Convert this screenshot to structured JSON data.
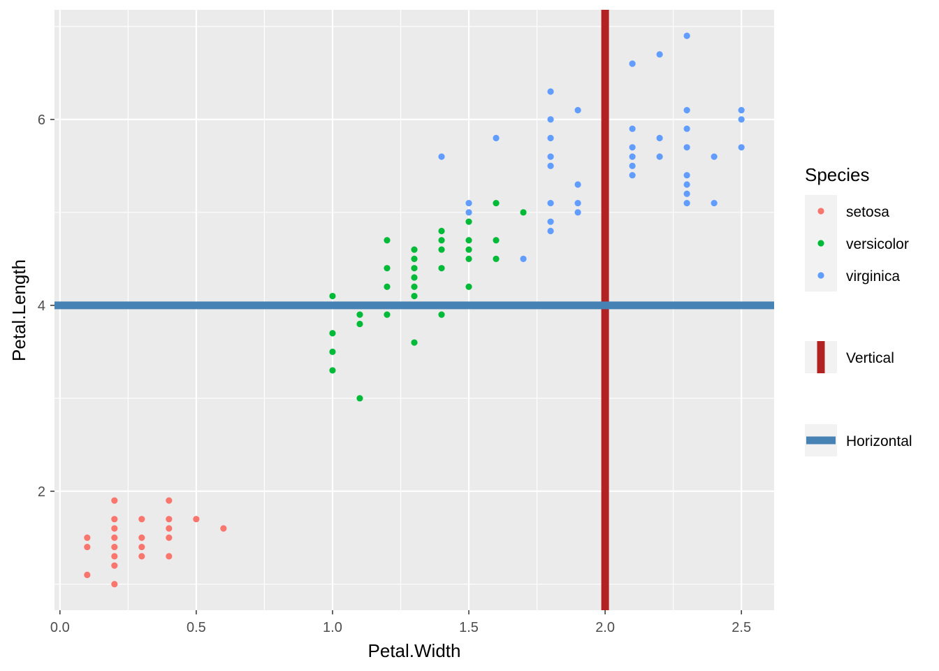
{
  "chart_data": {
    "type": "scatter",
    "xlabel": "Petal.Width",
    "ylabel": "Petal.Length",
    "xlim": [
      -0.02,
      2.62
    ],
    "ylim": [
      0.72,
      7.18
    ],
    "x_ticks": [
      0.0,
      0.5,
      1.0,
      1.5,
      2.0,
      2.5
    ],
    "x_tick_labels": [
      "0.0",
      "0.5",
      "1.0",
      "1.5",
      "2.0",
      "2.5"
    ],
    "y_ticks": [
      2,
      4,
      6
    ],
    "y_tick_labels": [
      "2",
      "4",
      "6"
    ],
    "x_minor_ticks": [
      0.25,
      0.75,
      1.25,
      1.75,
      2.25
    ],
    "y_minor_ticks": [
      1,
      3,
      5,
      7
    ],
    "grid": true,
    "panel_background": "#ebebeb",
    "legend_position": "right",
    "legend_title": "Species",
    "series": [
      {
        "name": "setosa",
        "color": "#F8766D",
        "points": [
          [
            0.1,
            1.1
          ],
          [
            0.1,
            1.4
          ],
          [
            0.1,
            1.5
          ],
          [
            0.2,
            1.0
          ],
          [
            0.2,
            1.2
          ],
          [
            0.2,
            1.3
          ],
          [
            0.2,
            1.4
          ],
          [
            0.2,
            1.5
          ],
          [
            0.2,
            1.6
          ],
          [
            0.2,
            1.7
          ],
          [
            0.2,
            1.9
          ],
          [
            0.3,
            1.3
          ],
          [
            0.3,
            1.4
          ],
          [
            0.3,
            1.5
          ],
          [
            0.3,
            1.7
          ],
          [
            0.4,
            1.3
          ],
          [
            0.4,
            1.5
          ],
          [
            0.4,
            1.6
          ],
          [
            0.4,
            1.7
          ],
          [
            0.4,
            1.9
          ],
          [
            0.5,
            1.7
          ],
          [
            0.6,
            1.6
          ]
        ]
      },
      {
        "name": "versicolor",
        "color": "#00BA38",
        "points": [
          [
            1.0,
            3.3
          ],
          [
            1.0,
            3.5
          ],
          [
            1.0,
            3.7
          ],
          [
            1.0,
            4.1
          ],
          [
            1.1,
            3.0
          ],
          [
            1.1,
            3.8
          ],
          [
            1.1,
            3.9
          ],
          [
            1.2,
            3.9
          ],
          [
            1.2,
            4.2
          ],
          [
            1.2,
            4.4
          ],
          [
            1.2,
            4.7
          ],
          [
            1.3,
            3.6
          ],
          [
            1.3,
            4.1
          ],
          [
            1.3,
            4.2
          ],
          [
            1.3,
            4.3
          ],
          [
            1.3,
            4.4
          ],
          [
            1.3,
            4.5
          ],
          [
            1.3,
            4.6
          ],
          [
            1.4,
            3.9
          ],
          [
            1.4,
            4.4
          ],
          [
            1.4,
            4.6
          ],
          [
            1.4,
            4.7
          ],
          [
            1.4,
            4.8
          ],
          [
            1.5,
            4.2
          ],
          [
            1.5,
            4.5
          ],
          [
            1.5,
            4.6
          ],
          [
            1.5,
            4.7
          ],
          [
            1.5,
            4.9
          ],
          [
            1.6,
            4.5
          ],
          [
            1.6,
            4.7
          ],
          [
            1.6,
            5.1
          ],
          [
            1.7,
            5.0
          ]
        ]
      },
      {
        "name": "virginica",
        "color": "#619CFF",
        "points": [
          [
            1.4,
            5.6
          ],
          [
            1.5,
            5.0
          ],
          [
            1.5,
            5.1
          ],
          [
            1.6,
            5.8
          ],
          [
            1.7,
            4.5
          ],
          [
            1.8,
            4.8
          ],
          [
            1.8,
            4.9
          ],
          [
            1.8,
            5.1
          ],
          [
            1.8,
            5.5
          ],
          [
            1.8,
            5.6
          ],
          [
            1.8,
            5.8
          ],
          [
            1.8,
            6.0
          ],
          [
            1.8,
            6.3
          ],
          [
            1.9,
            5.0
          ],
          [
            1.9,
            5.1
          ],
          [
            1.9,
            5.3
          ],
          [
            1.9,
            6.1
          ],
          [
            2.1,
            5.4
          ],
          [
            2.1,
            5.5
          ],
          [
            2.1,
            5.6
          ],
          [
            2.1,
            5.7
          ],
          [
            2.1,
            5.9
          ],
          [
            2.1,
            6.6
          ],
          [
            2.2,
            5.6
          ],
          [
            2.2,
            5.8
          ],
          [
            2.2,
            6.7
          ],
          [
            2.3,
            5.1
          ],
          [
            2.3,
            5.2
          ],
          [
            2.3,
            5.3
          ],
          [
            2.3,
            5.4
          ],
          [
            2.3,
            5.7
          ],
          [
            2.3,
            5.9
          ],
          [
            2.3,
            6.1
          ],
          [
            2.3,
            6.9
          ],
          [
            2.4,
            5.1
          ],
          [
            2.4,
            5.6
          ],
          [
            2.5,
            5.7
          ],
          [
            2.5,
            6.0
          ],
          [
            2.5,
            6.1
          ]
        ]
      }
    ],
    "reference_lines": [
      {
        "name": "Vertical",
        "orientation": "vertical",
        "value": 2.0,
        "color": "#B22222"
      },
      {
        "name": "Horizontal",
        "orientation": "horizontal",
        "value": 4.0,
        "color": "#4682B4"
      }
    ]
  }
}
